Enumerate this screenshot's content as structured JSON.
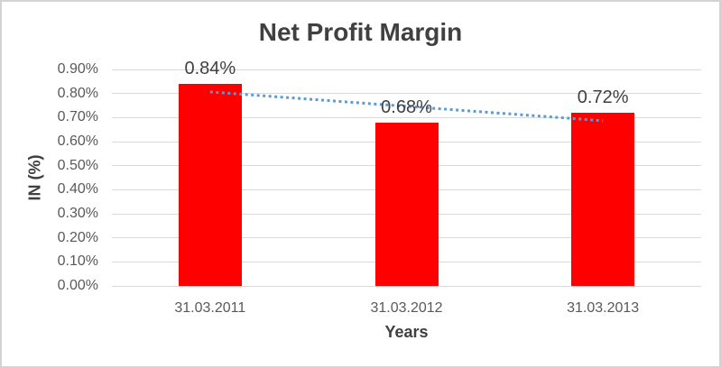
{
  "chart_data": {
    "type": "bar",
    "title": "Net Profit Margin",
    "xlabel": "Years",
    "ylabel": "IN (%)",
    "categories": [
      "31.03.2011",
      "31.03.2012",
      "31.03.2013"
    ],
    "values": [
      0.84,
      0.68,
      0.72
    ],
    "value_labels": [
      "0.84%",
      "0.68%",
      "0.72%"
    ],
    "ylim": [
      0,
      0.9
    ],
    "ytick_values": [
      0,
      0.1,
      0.2,
      0.3,
      0.4,
      0.5,
      0.6,
      0.7,
      0.8,
      0.9
    ],
    "ytick_labels": [
      "0.00%",
      "0.10%",
      "0.20%",
      "0.30%",
      "0.40%",
      "0.50%",
      "0.60%",
      "0.70%",
      "0.80%",
      "0.90%"
    ],
    "grid": true,
    "legend": "none",
    "bar_color": "#FF0000",
    "trendline": {
      "type": "linear",
      "style": "dotted",
      "color": "#5B9BD5",
      "start_value": 0.8067,
      "end_value": 0.6867
    }
  },
  "colors": {
    "background": "#FFFFFF",
    "border": "#D3D3D3",
    "gridline": "#D9D9D9",
    "title_text": "#404040",
    "axis_title_text": "#404040",
    "tick_text": "#595959",
    "data_label_text": "#404040"
  }
}
